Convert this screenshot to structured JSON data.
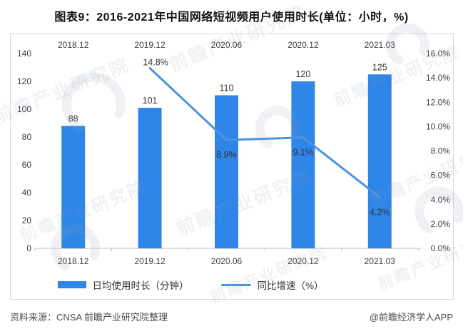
{
  "title": "图表9：2016-2021年中国网络短视频用户使用时长(单位：小时，%)",
  "source_note": "资料来源：CNSA 前瞻产业研究院整理",
  "credit": "@前瞻经济学人APP",
  "watermark_text": "前瞻产业研究院",
  "colors": {
    "bar": "#2e86e9",
    "line": "#4a94dd",
    "axis_text": "#404040",
    "data_label": "#333333",
    "axis_line": "#bfbfbf",
    "box_border": "#d9d9d9",
    "watermark": "#8f9db0"
  },
  "legend": [
    {
      "label": "日均使用时长（分钟）",
      "type": "bar"
    },
    {
      "label": "同比增速（%）",
      "type": "line"
    }
  ],
  "chart_data": {
    "type": "bar+line combo",
    "title": "图表9：2016-2021年中国网络短视频用户使用时长(单位：小时，%)",
    "categories": [
      "2018.12",
      "2019.12",
      "2020.06",
      "2020.12",
      "2021.03"
    ],
    "series": [
      {
        "name": "日均使用时长（分钟）",
        "type": "bar",
        "axis": "left",
        "values": [
          88,
          101,
          110,
          120,
          125
        ],
        "point_labels": [
          "88",
          "101",
          "110",
          "120",
          "125"
        ]
      },
      {
        "name": "同比增速（%）",
        "type": "line",
        "axis": "right",
        "values": [
          null,
          14.8,
          8.9,
          9.1,
          4.2
        ],
        "point_labels": [
          "",
          "14.8%",
          "8.9%",
          "9.1%",
          "4.2%"
        ],
        "label_side": [
          "",
          "above",
          "below",
          "below",
          "below"
        ]
      }
    ],
    "left_axis": {
      "min": 0,
      "max": 140,
      "step": 20,
      "tick_labels": [
        "140",
        "120",
        "100",
        "80",
        "60",
        "40",
        "20",
        "0"
      ]
    },
    "right_axis": {
      "min": 0,
      "max": 16,
      "step": 2,
      "tick_labels": [
        "16.0%",
        "14.0%",
        "12.0%",
        "10.0%",
        "8.0%",
        "6.0%",
        "4.0%",
        "2.0%",
        "0.0%"
      ]
    },
    "grid": false,
    "legend_position": "bottom",
    "category_axis": {
      "top_labels": true,
      "bottom_labels": true
    }
  }
}
